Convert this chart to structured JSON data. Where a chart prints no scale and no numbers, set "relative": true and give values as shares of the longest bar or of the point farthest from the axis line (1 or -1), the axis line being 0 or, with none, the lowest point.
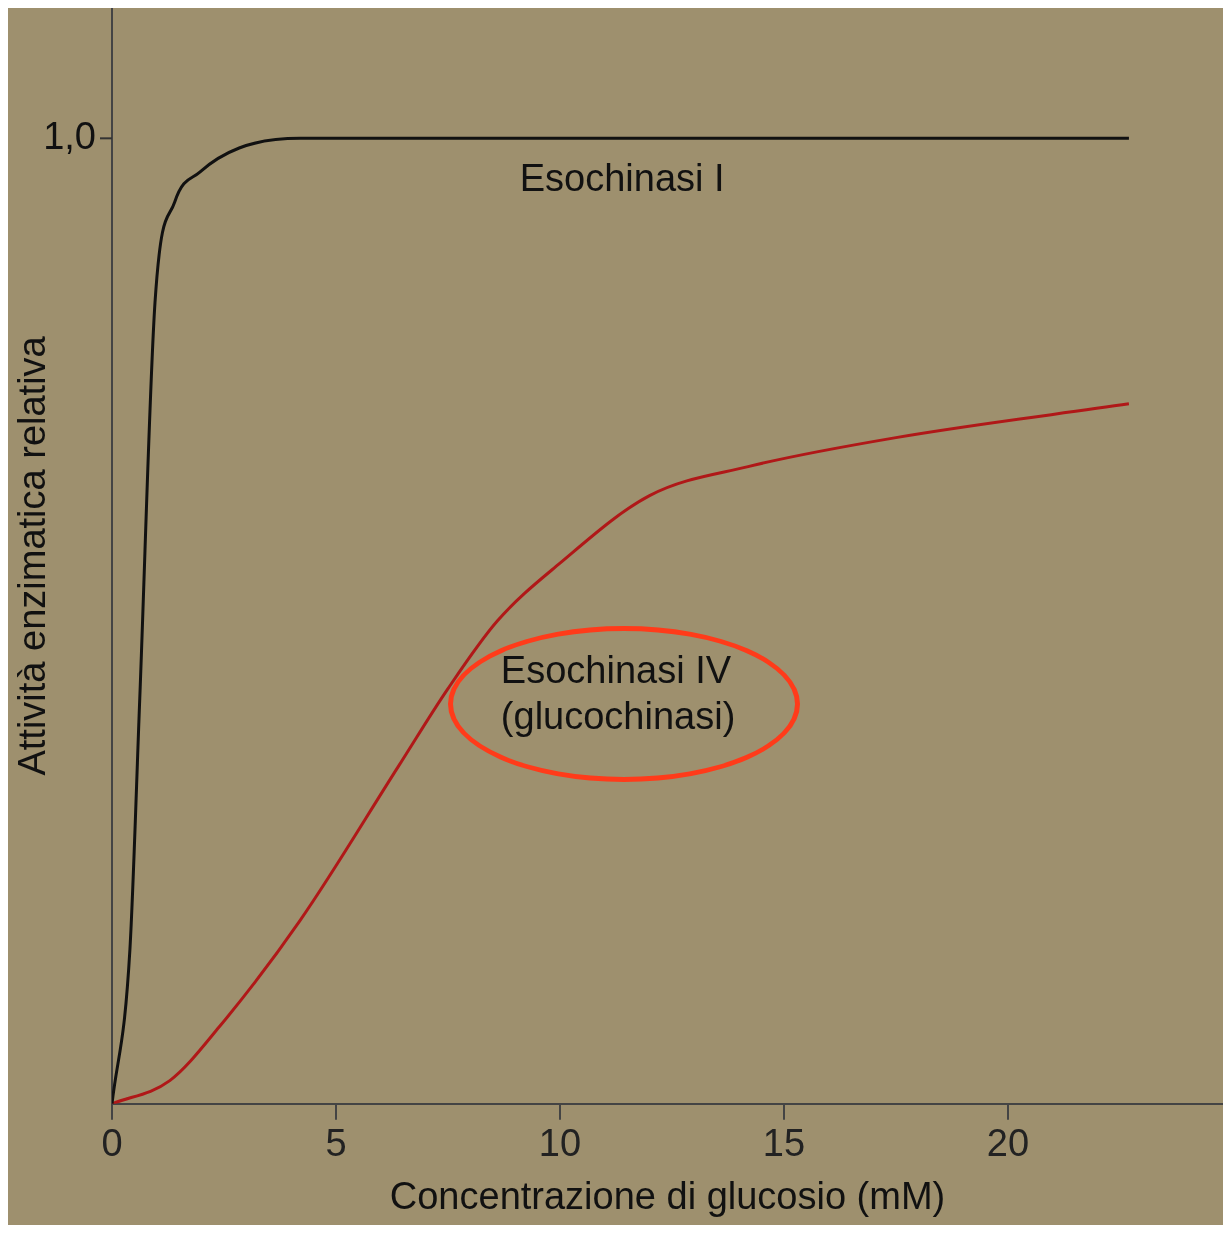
{
  "chart_data": {
    "type": "line",
    "relative": true,
    "xlabel": "Concentrazione di glucosio (mM)",
    "ylabel": "Attività enzimatica relativa",
    "xlim": [
      0,
      24.8
    ],
    "xticks": [
      0,
      5,
      10,
      15,
      20
    ],
    "grid": false,
    "legend": false,
    "marker": "none",
    "line_style": "solid",
    "annotations": [
      "1,0"
    ],
    "series": [
      {
        "name": "Esochinasi I",
        "color": "#111111",
        "x": [
          0,
          0.4,
          0.62,
          0.96,
          1.4,
          1.96,
          2.84,
          4.2,
          22.7
        ],
        "values": [
          0,
          0.16,
          0.42,
          0.83,
          0.934,
          0.965,
          0.99,
          1,
          1
        ]
      },
      {
        "name": "Esochinasi IV\n(glucochinasi)",
        "color": "#b01818",
        "x": [
          0,
          1.29,
          2.4,
          4.2,
          6.4,
          7.5,
          8.6,
          10,
          12,
          14.2,
          17.5,
          22.7
        ],
        "values": [
          0,
          0.024,
          0.08,
          0.19,
          0.35,
          0.43,
          0.5,
          0.56,
          0.63,
          0.66,
          0.69,
          0.725
        ]
      }
    ]
  }
}
